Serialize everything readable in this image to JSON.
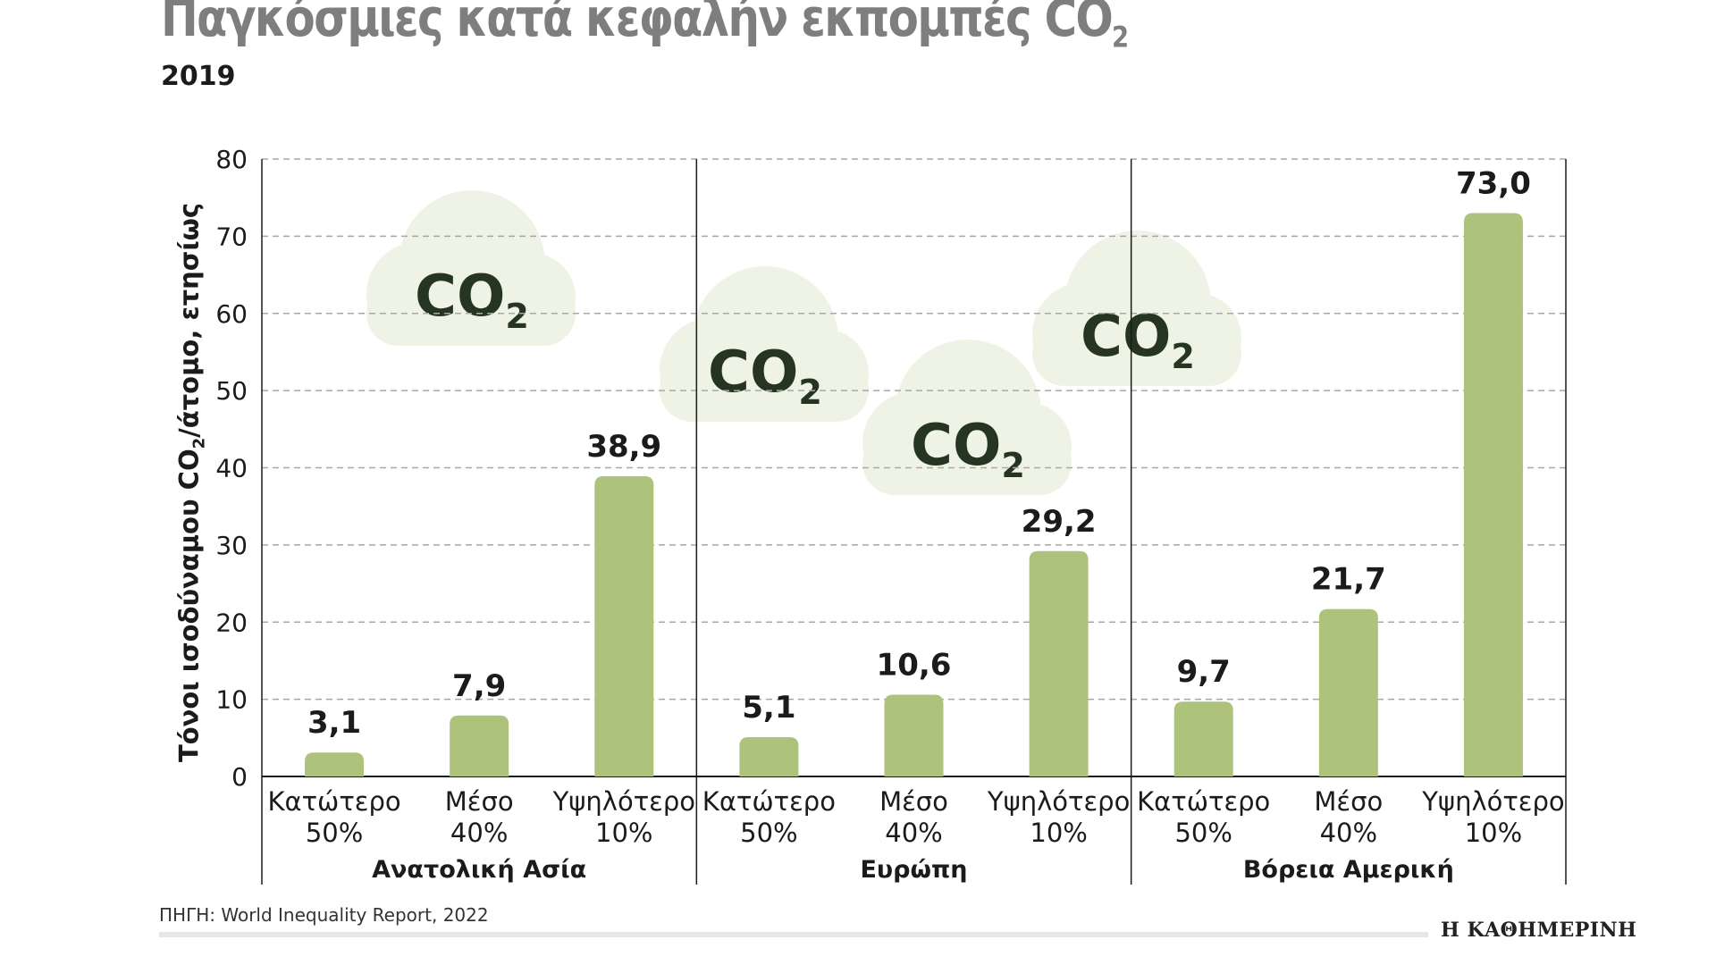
{
  "header": {
    "title": "Παγκόσμιες κατά κεφαλήν εκπομπές CO",
    "title_subscript": "2",
    "subtitle": "2019"
  },
  "source": "ΠΗΓΗ: World Inequality Report, 2022",
  "brand": "Η ΚΑΘΗΜΕΡΙΝΗ",
  "colors": {
    "bar": "#adc27b",
    "cloud": "#eef3e6",
    "grid": "#a8a8a8",
    "axis": "#1b1b1b"
  },
  "decorations": {
    "cloud_text": "CO",
    "cloud_subscript": "2"
  },
  "chart_data": {
    "type": "bar",
    "ylabel": "Τόνοι ισοδύναμου CO",
    "ylabel_subscript": "2",
    "ylabel_suffix": "/άτομο, ετησίως",
    "ylim": [
      0,
      80
    ],
    "yticks": [
      "0",
      "10",
      "20",
      "30",
      "40",
      "50",
      "60",
      "70",
      "80"
    ],
    "grid": true,
    "groups": [
      {
        "name": "Ανατολική Ασία",
        "bars": [
          {
            "line1": "Κατώτερο",
            "line2": "50%",
            "value": 3.1,
            "label": "3,1"
          },
          {
            "line1": "Μέσο",
            "line2": "40%",
            "value": 7.9,
            "label": "7,9"
          },
          {
            "line1": "Υψηλότερο",
            "line2": "10%",
            "value": 38.9,
            "label": "38,9"
          }
        ]
      },
      {
        "name": "Ευρώπη",
        "bars": [
          {
            "line1": "Κατώτερο",
            "line2": "50%",
            "value": 5.1,
            "label": "5,1"
          },
          {
            "line1": "Μέσο",
            "line2": "40%",
            "value": 10.6,
            "label": "10,6"
          },
          {
            "line1": "Υψηλότερο",
            "line2": "10%",
            "value": 29.2,
            "label": "29,2"
          }
        ]
      },
      {
        "name": "Βόρεια Αμερική",
        "bars": [
          {
            "line1": "Κατώτερο",
            "line2": "50%",
            "value": 9.7,
            "label": "9,7"
          },
          {
            "line1": "Μέσο",
            "line2": "40%",
            "value": 21.7,
            "label": "21,7"
          },
          {
            "line1": "Υψηλότερο",
            "line2": "10%",
            "value": 73.0,
            "label": "73,0"
          }
        ]
      }
    ]
  }
}
